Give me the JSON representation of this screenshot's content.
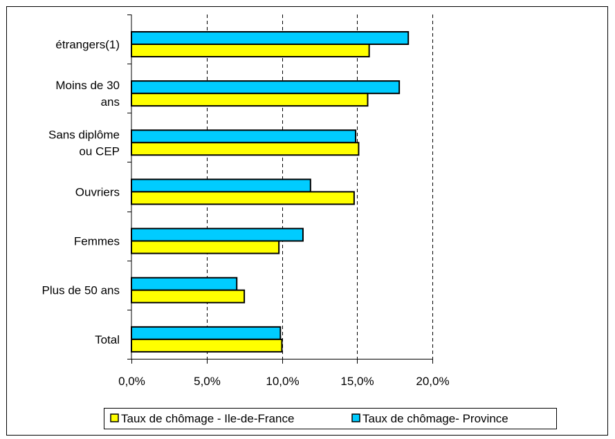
{
  "chart_data": {
    "type": "bar",
    "orientation": "horizontal",
    "categories": [
      [
        "étrangers(1)"
      ],
      [
        "Moins de 30",
        "ans"
      ],
      [
        "Sans diplôme",
        "ou CEP"
      ],
      [
        "Ouvriers"
      ],
      [
        "Femmes"
      ],
      [
        "Plus de 50 ans"
      ],
      [
        "Total"
      ]
    ],
    "series": [
      {
        "name": "Taux de chômage- Province",
        "color": "#00CCFF",
        "values": [
          18.4,
          17.8,
          14.9,
          11.9,
          11.4,
          7.0,
          9.9
        ]
      },
      {
        "name": "Taux de chômage - Ile-de-France",
        "color": "#FFFF00",
        "values": [
          15.8,
          15.7,
          15.1,
          14.8,
          9.8,
          7.5,
          10.0
        ]
      }
    ],
    "xlim": [
      0,
      20
    ],
    "xticks": [
      "0,0%",
      "5,0%",
      "10,0%",
      "15,0%",
      "20,0%"
    ],
    "grid": "vertical dashed",
    "legend": {
      "position": "bottom",
      "entries": [
        "Taux de chômage - Ile-de-France",
        "Taux de chômage- Province"
      ]
    }
  }
}
